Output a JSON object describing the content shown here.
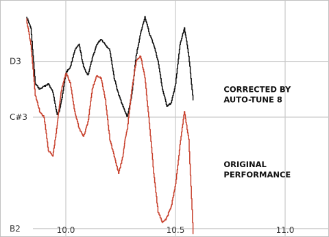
{
  "chart_data": {
    "type": "line",
    "title": "",
    "xlabel": "",
    "ylabel": "",
    "xlim": [
      9.7,
      11.2
    ],
    "ylim": [
      46.85,
      51.1
    ],
    "x_ticks": [
      {
        "value": 10.0,
        "label": "10.0"
      },
      {
        "value": 10.5,
        "label": "10.5"
      },
      {
        "value": 11.0,
        "label": "11.0"
      }
    ],
    "y_ticks": [
      {
        "value": 47.0,
        "label": "B2"
      },
      {
        "value": 49.0,
        "label": "C#3"
      },
      {
        "value": 50.0,
        "label": "D3"
      }
    ],
    "grid": true,
    "annotations": [
      {
        "lines": [
          "CORRECTED BY",
          "AUTO-TUNE 8"
        ],
        "x": 10.72,
        "y": 49.45,
        "series": "corrected"
      },
      {
        "lines": [
          "ORIGINAL",
          "PERFORMANCE"
        ],
        "x": 10.72,
        "y": 48.1,
        "series": "original"
      }
    ],
    "series": [
      {
        "name": "corrected",
        "color": "#111111",
        "x": [
          9.82,
          9.84,
          9.86,
          9.88,
          9.9,
          9.92,
          9.94,
          9.96,
          9.97,
          9.98,
          10.0,
          10.02,
          10.04,
          10.06,
          10.08,
          10.1,
          10.12,
          10.14,
          10.16,
          10.18,
          10.2,
          10.22,
          10.24,
          10.26,
          10.27,
          10.28,
          10.3,
          10.32,
          10.34,
          10.36,
          10.38,
          10.4,
          10.42,
          10.44,
          10.46,
          10.48,
          10.5,
          10.52,
          10.54,
          10.56,
          10.58
        ],
        "values": [
          50.8,
          50.6,
          49.6,
          49.5,
          49.55,
          49.6,
          49.45,
          49.05,
          49.1,
          49.3,
          49.8,
          49.9,
          50.2,
          50.3,
          49.9,
          49.75,
          50.05,
          50.3,
          50.4,
          50.3,
          50.2,
          49.7,
          49.4,
          49.2,
          49.1,
          49.0,
          49.4,
          50.1,
          50.5,
          50.8,
          50.5,
          50.3,
          50.0,
          49.5,
          49.2,
          49.25,
          49.6,
          50.3,
          50.6,
          50.1,
          49.3
        ]
      },
      {
        "name": "original",
        "color": "#c8412d",
        "x": [
          9.82,
          9.84,
          9.86,
          9.88,
          9.9,
          9.92,
          9.94,
          9.96,
          9.97,
          9.98,
          10.0,
          10.02,
          10.04,
          10.06,
          10.08,
          10.1,
          10.12,
          10.14,
          10.16,
          10.18,
          10.2,
          10.22,
          10.24,
          10.26,
          10.27,
          10.28,
          10.3,
          10.32,
          10.34,
          10.36,
          10.38,
          10.4,
          10.42,
          10.44,
          10.46,
          10.48,
          10.5,
          10.52,
          10.54,
          10.56,
          10.58
        ],
        "values": [
          50.75,
          50.3,
          49.4,
          49.1,
          49.0,
          48.4,
          48.3,
          48.85,
          49.2,
          49.5,
          49.8,
          49.6,
          49.1,
          48.8,
          48.65,
          48.9,
          49.5,
          49.75,
          49.7,
          49.3,
          48.6,
          48.3,
          48.0,
          48.3,
          48.6,
          48.8,
          49.5,
          50.0,
          50.1,
          49.7,
          48.9,
          48.0,
          47.3,
          47.1,
          47.2,
          47.4,
          47.8,
          48.5,
          49.1,
          48.6,
          46.9
        ]
      }
    ]
  }
}
